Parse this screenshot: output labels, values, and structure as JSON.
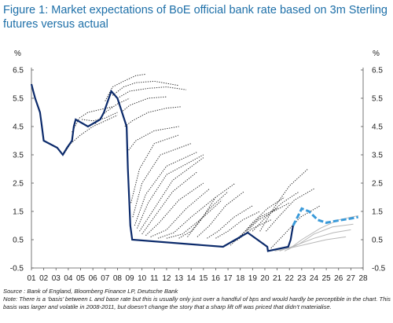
{
  "figure": {
    "title": "Figure 1: Market expectations of BoE official bank rate based on 3m Sterling futures versus actual",
    "source": "Source : Bank of England, Bloomberg Finance LP, Deutsche Bank",
    "note_line1": "Note: There is a ‘basis’ between L and base rate but this is usually only just over a handful of bps and would hardly be perceptible in the chart. This",
    "note_line2": "basis was larger and volatile in 2008-2011, but doesn’t change the story that a sharp lift off was priced that didn’t materialise."
  },
  "chart_data": {
    "type": "line",
    "ylabel_left": "%",
    "ylabel_right": "%",
    "ylim": [
      -0.5,
      6.5
    ],
    "yticks": [
      "6.5",
      "5.5",
      "4.5",
      "3.5",
      "2.5",
      "1.5",
      "0.5",
      "-0.5"
    ],
    "xlim": [
      2001,
      2028
    ],
    "xticks": [
      "01",
      "02",
      "03",
      "04",
      "05",
      "06",
      "07",
      "08",
      "09",
      "10",
      "11",
      "12",
      "13",
      "14",
      "15",
      "16",
      "17",
      "18",
      "19",
      "20",
      "21",
      "22",
      "23",
      "24",
      "25",
      "26",
      "27",
      "28"
    ],
    "colors": {
      "actual": "#0b2a6b",
      "expectations": "#2a2a2a",
      "latest": "#3a9ad9",
      "older_curves": "#b8b8b8"
    },
    "actual": {
      "x": [
        2001.0,
        2001.15,
        2001.3,
        2001.5,
        2001.7,
        2001.85,
        2002.0,
        2003.1,
        2003.55,
        2003.9,
        2004.3,
        2004.45,
        2004.6,
        2005.6,
        2006.6,
        2006.9,
        2007.1,
        2007.5,
        2008.0,
        2008.75,
        2008.85,
        2009.05,
        2009.2,
        2016.6,
        2018.6,
        2020.2,
        2020.25,
        2021.9,
        2022.1,
        2022.2,
        2022.3
      ],
      "y": [
        6.0,
        5.75,
        5.5,
        5.25,
        5.0,
        4.5,
        4.0,
        3.75,
        3.5,
        3.75,
        4.0,
        4.5,
        4.75,
        4.5,
        4.75,
        5.0,
        5.25,
        5.75,
        5.5,
        4.5,
        3.0,
        1.0,
        0.5,
        0.25,
        0.75,
        0.25,
        0.1,
        0.25,
        0.5,
        0.75,
        1.0
      ]
    },
    "latest": {
      "x": [
        2022.3,
        2022.6,
        2023.0,
        2023.6,
        2024.3,
        2025.0,
        2025.6,
        2026.3,
        2027.0,
        2027.6
      ],
      "y": [
        1.0,
        1.25,
        1.6,
        1.5,
        1.2,
        1.1,
        1.15,
        1.2,
        1.25,
        1.3
      ]
    },
    "older_curves": [
      {
        "x": [
          2021.9,
          2023.0,
          2024.5,
          2026.0,
          2027.6
        ],
        "y": [
          0.15,
          0.5,
          0.9,
          1.2,
          1.35
        ]
      },
      {
        "x": [
          2021.6,
          2022.8,
          2024.0,
          2025.5,
          2027.2
        ],
        "y": [
          0.1,
          0.35,
          0.7,
          0.95,
          1.05
        ]
      },
      {
        "x": [
          2021.2,
          2022.5,
          2024.0,
          2025.6,
          2027.0
        ],
        "y": [
          0.1,
          0.3,
          0.55,
          0.75,
          0.85
        ]
      },
      {
        "x": [
          2020.8,
          2022.0,
          2023.5,
          2025.0,
          2026.6
        ],
        "y": [
          0.1,
          0.2,
          0.35,
          0.5,
          0.6
        ]
      }
    ],
    "expectations": [
      {
        "x": [
          2003.6,
          2004.2,
          2005.0,
          2006.0,
          2007.0,
          2008.0
        ],
        "y": [
          3.5,
          3.9,
          4.2,
          4.5,
          4.7,
          4.9
        ]
      },
      {
        "x": [
          2004.3,
          2004.9,
          2005.6,
          2006.6,
          2007.6
        ],
        "y": [
          4.3,
          4.8,
          5.0,
          5.1,
          5.2
        ]
      },
      {
        "x": [
          2005.1,
          2006.0,
          2007.0,
          2008.0
        ],
        "y": [
          4.75,
          4.7,
          4.8,
          5.0
        ]
      },
      {
        "x": [
          2006.2,
          2007.0,
          2008.0,
          2009.0
        ],
        "y": [
          4.6,
          5.0,
          5.3,
          5.5
        ]
      },
      {
        "x": [
          2007.0,
          2007.6,
          2008.5,
          2009.5,
          2010.3
        ],
        "y": [
          5.4,
          5.9,
          6.1,
          6.3,
          6.35
        ]
      },
      {
        "x": [
          2007.6,
          2008.5,
          2009.5,
          2011.0,
          2013.0
        ],
        "y": [
          5.6,
          5.9,
          6.05,
          6.1,
          5.95
        ]
      },
      {
        "x": [
          2008.0,
          2009.0,
          2010.5,
          2012.0,
          2013.6
        ],
        "y": [
          5.5,
          5.75,
          5.85,
          5.9,
          5.8
        ]
      },
      {
        "x": [
          2008.3,
          2009.0,
          2010.5,
          2012.0
        ],
        "y": [
          5.0,
          5.25,
          5.5,
          5.55
        ]
      },
      {
        "x": [
          2008.6,
          2009.2,
          2010.5,
          2012.0,
          2013.2
        ],
        "y": [
          4.5,
          4.7,
          5.0,
          5.15,
          5.2
        ]
      },
      {
        "x": [
          2008.8,
          2009.5,
          2011.0,
          2013.0
        ],
        "y": [
          3.6,
          4.0,
          4.35,
          4.5
        ]
      },
      {
        "x": [
          2009.1,
          2009.8,
          2011.0,
          2013.0
        ],
        "y": [
          1.8,
          3.0,
          3.9,
          4.2
        ]
      },
      {
        "x": [
          2009.25,
          2010.0,
          2011.5,
          2014.0
        ],
        "y": [
          1.3,
          2.5,
          3.5,
          3.9
        ]
      },
      {
        "x": [
          2009.4,
          2010.3,
          2012.0,
          2014.5
        ],
        "y": [
          1.0,
          2.1,
          3.1,
          3.6
        ]
      },
      {
        "x": [
          2009.6,
          2010.5,
          2012.0,
          2015.0
        ],
        "y": [
          0.9,
          1.8,
          2.8,
          3.5
        ]
      },
      {
        "x": [
          2009.8,
          2011.0,
          2012.5,
          2015.0
        ],
        "y": [
          0.8,
          1.6,
          2.6,
          3.4
        ]
      },
      {
        "x": [
          2010.0,
          2011.0,
          2012.5,
          2014.5
        ],
        "y": [
          0.7,
          1.3,
          2.2,
          2.9
        ]
      },
      {
        "x": [
          2010.3,
          2011.4,
          2013.0,
          2015.0
        ],
        "y": [
          0.65,
          1.1,
          1.9,
          2.5
        ]
      },
      {
        "x": [
          2010.7,
          2012.0,
          2013.6,
          2015.5
        ],
        "y": [
          0.6,
          0.85,
          1.6,
          2.3
        ]
      },
      {
        "x": [
          2011.3,
          2012.6,
          2014.0,
          2016.0
        ],
        "y": [
          0.55,
          0.75,
          1.3,
          2.0
        ]
      },
      {
        "x": [
          2012.0,
          2013.3,
          2015.0,
          2016.5
        ],
        "y": [
          0.55,
          0.7,
          1.3,
          1.9
        ]
      },
      {
        "x": [
          2013.0,
          2014.0,
          2015.5,
          2017.0
        ],
        "y": [
          0.55,
          0.8,
          1.6,
          2.2
        ]
      },
      {
        "x": [
          2013.7,
          2014.8,
          2016.0,
          2017.6
        ],
        "y": [
          0.6,
          1.2,
          2.0,
          2.5
        ]
      },
      {
        "x": [
          2014.5,
          2015.5,
          2016.8,
          2018.3
        ],
        "y": [
          0.6,
          1.0,
          1.7,
          2.2
        ]
      },
      {
        "x": [
          2015.3,
          2016.2,
          2017.5,
          2019.0
        ],
        "y": [
          0.55,
          0.8,
          1.3,
          1.7
        ]
      },
      {
        "x": [
          2016.0,
          2017.0,
          2018.2,
          2019.6
        ],
        "y": [
          0.55,
          0.8,
          1.2,
          1.5
        ]
      },
      {
        "x": [
          2016.7,
          2017.8,
          2019.0,
          2020.5
        ],
        "y": [
          0.3,
          0.5,
          0.9,
          1.2
        ]
      },
      {
        "x": [
          2017.2,
          2018.4,
          2019.6,
          2021.0
        ],
        "y": [
          0.3,
          0.8,
          1.3,
          1.6
        ]
      },
      {
        "x": [
          2017.9,
          2019.0,
          2020.2,
          2021.6
        ],
        "y": [
          0.55,
          1.1,
          1.6,
          2.0
        ]
      },
      {
        "x": [
          2018.5,
          2019.5,
          2020.7,
          2022.0
        ],
        "y": [
          0.8,
          1.2,
          1.5,
          1.8
        ]
      },
      {
        "x": [
          2019.0,
          2020.1,
          2021.4,
          2022.8
        ],
        "y": [
          0.8,
          1.3,
          1.8,
          2.2
        ]
      },
      {
        "x": [
          2019.6,
          2020.7,
          2022.0,
          2023.5
        ],
        "y": [
          0.8,
          1.6,
          2.4,
          3.0
        ]
      },
      {
        "x": [
          2020.1,
          2021.1,
          2022.4,
          2024.0
        ],
        "y": [
          0.8,
          1.3,
          1.9,
          2.3
        ]
      },
      {
        "x": [
          2020.5,
          2021.6,
          2022.9,
          2024.5
        ],
        "y": [
          0.2,
          0.7,
          1.3,
          1.7
        ]
      }
    ]
  }
}
